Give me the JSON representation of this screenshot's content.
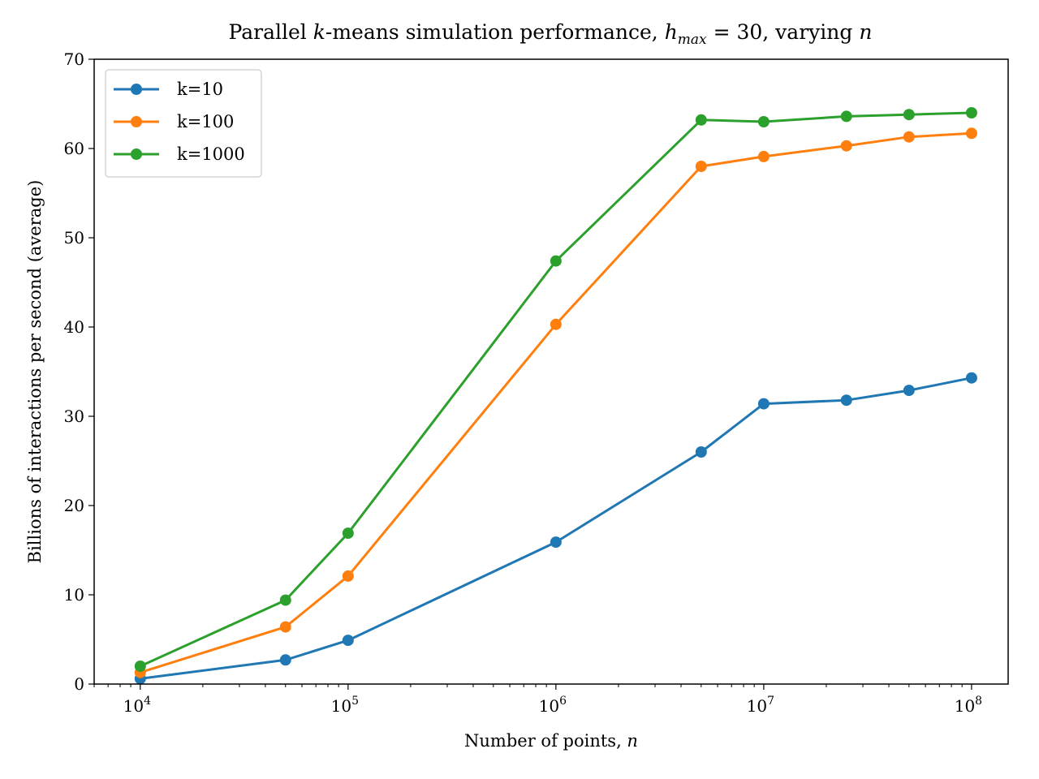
{
  "chart_data": {
    "type": "line",
    "title": {
      "prefix": "Parallel ",
      "k": "k",
      "middle": "-means simulation performance, ",
      "h": "h",
      "h_sub": "max",
      "eq": " = 30, varying ",
      "n": "n"
    },
    "xlabel": {
      "text": "Number of points, ",
      "var": "n"
    },
    "ylabel": "Billions of interactions per second (average)",
    "xscale": "log",
    "xlim": [
      6000,
      150000000
    ],
    "ylim": [
      0,
      70
    ],
    "yticks": [
      0,
      10,
      20,
      30,
      40,
      50,
      60,
      70
    ],
    "xticks": [
      {
        "value": 10000,
        "base": "10",
        "exp": "4"
      },
      {
        "value": 100000,
        "base": "10",
        "exp": "5"
      },
      {
        "value": 1000000,
        "base": "10",
        "exp": "6"
      },
      {
        "value": 10000000,
        "base": "10",
        "exp": "7"
      },
      {
        "value": 100000000,
        "base": "10",
        "exp": "8"
      }
    ],
    "grid": false,
    "legend_position": "top-left",
    "x": [
      10000,
      50000,
      100000,
      1000000,
      5000000,
      10000000,
      25000000,
      50000000,
      100000000
    ],
    "series": [
      {
        "name": "k=10",
        "color": "#1f77b4",
        "values": [
          0.6,
          2.7,
          4.9,
          15.9,
          26.0,
          31.4,
          31.8,
          32.9,
          34.3
        ]
      },
      {
        "name": "k=100",
        "color": "#ff7f0e",
        "values": [
          1.3,
          6.4,
          12.1,
          40.3,
          58.0,
          59.1,
          60.3,
          61.3,
          61.7
        ]
      },
      {
        "name": "k=1000",
        "color": "#2ca02c",
        "values": [
          2.0,
          9.4,
          16.9,
          47.4,
          63.2,
          63.0,
          63.6,
          63.8,
          64.0
        ]
      }
    ]
  }
}
